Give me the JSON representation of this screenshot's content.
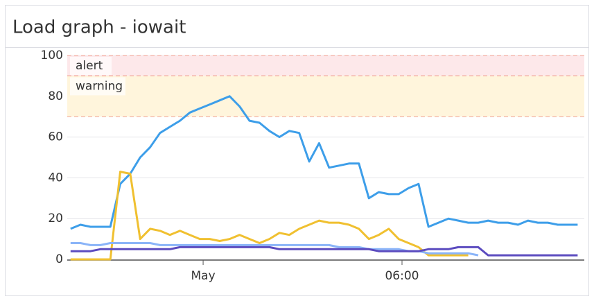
{
  "chart_data": {
    "type": "line",
    "title": "Load graph - iowait",
    "x": [
      -4.0,
      -3.7,
      -3.4,
      -3.1,
      -2.8,
      -2.5,
      -2.2,
      -1.9,
      -1.6,
      -1.3,
      -1.0,
      -0.7,
      -0.4,
      -0.1,
      0.2,
      0.5,
      0.8,
      1.1,
      1.4,
      1.7,
      2.0,
      2.3,
      2.6,
      2.9,
      3.2,
      3.5,
      3.8,
      4.1,
      4.4,
      4.7,
      5.0,
      5.3,
      5.6,
      5.9,
      6.2,
      6.5,
      6.8,
      7.1,
      7.4,
      7.7,
      8.0,
      8.3,
      8.6,
      8.9,
      9.2,
      9.5,
      9.8,
      10.1,
      10.4,
      10.7,
      11.0,
      11.3
    ],
    "series": [
      {
        "color": "#3d9ee9",
        "values": [
          15,
          17,
          16,
          16,
          16,
          37,
          42,
          50,
          55,
          62,
          65,
          68,
          72,
          74,
          76,
          78,
          80,
          75,
          68,
          67,
          63,
          60,
          63,
          62,
          48,
          57,
          45,
          46,
          47,
          47,
          30,
          33,
          32,
          32,
          35,
          37,
          16,
          18,
          20,
          19,
          18,
          18,
          19,
          18,
          18,
          17,
          19,
          18,
          18,
          17,
          17,
          17
        ]
      },
      {
        "color": "#f0c030",
        "values": [
          0,
          0,
          0,
          0,
          0,
          43,
          42,
          10,
          15,
          14,
          12,
          14,
          12,
          10,
          10,
          9,
          10,
          12,
          10,
          8,
          10,
          13,
          12,
          15,
          17,
          19,
          18,
          18,
          17,
          15,
          10,
          12,
          15,
          10,
          8,
          6,
          2,
          2,
          2,
          2,
          2,
          null,
          null,
          null,
          null,
          null,
          null,
          null,
          null,
          null,
          null,
          null
        ]
      },
      {
        "color": "#8ab4f8",
        "values": [
          8,
          8,
          7,
          7,
          8,
          8,
          8,
          8,
          8,
          7,
          7,
          7,
          7,
          7,
          7,
          7,
          7,
          7,
          7,
          7,
          7,
          7,
          7,
          7,
          7,
          7,
          7,
          6,
          6,
          6,
          5,
          5,
          5,
          5,
          4,
          4,
          3,
          3,
          3,
          3,
          3,
          2,
          null,
          null,
          null,
          null,
          null,
          null,
          null,
          null,
          null,
          null
        ]
      },
      {
        "color": "#5b4bbf",
        "values": [
          4,
          4,
          4,
          5,
          5,
          5,
          5,
          5,
          5,
          5,
          5,
          6,
          6,
          6,
          6,
          6,
          6,
          6,
          6,
          6,
          6,
          5,
          5,
          5,
          5,
          5,
          5,
          5,
          5,
          5,
          5,
          4,
          4,
          4,
          4,
          4,
          5,
          5,
          5,
          6,
          6,
          6,
          2,
          2,
          2,
          2,
          2,
          2,
          2,
          2,
          2,
          2
        ]
      }
    ],
    "bands": [
      {
        "label": "alert",
        "from": 90,
        "to": 100,
        "color": "#fde8ea",
        "text_color": "#e06a7a"
      },
      {
        "label": "warning",
        "from": 70,
        "to": 90,
        "color": "#fff5dc",
        "text_color": "#e8b400"
      }
    ],
    "xlim": [
      -4.1,
      11.5
    ],
    "xticks": [
      {
        "value": 0,
        "label": "May"
      },
      {
        "value": 6,
        "label": "06:00"
      }
    ],
    "ylim": [
      0,
      100
    ],
    "yticks": [
      0,
      20,
      40,
      60,
      80,
      100
    ],
    "grid": true
  }
}
